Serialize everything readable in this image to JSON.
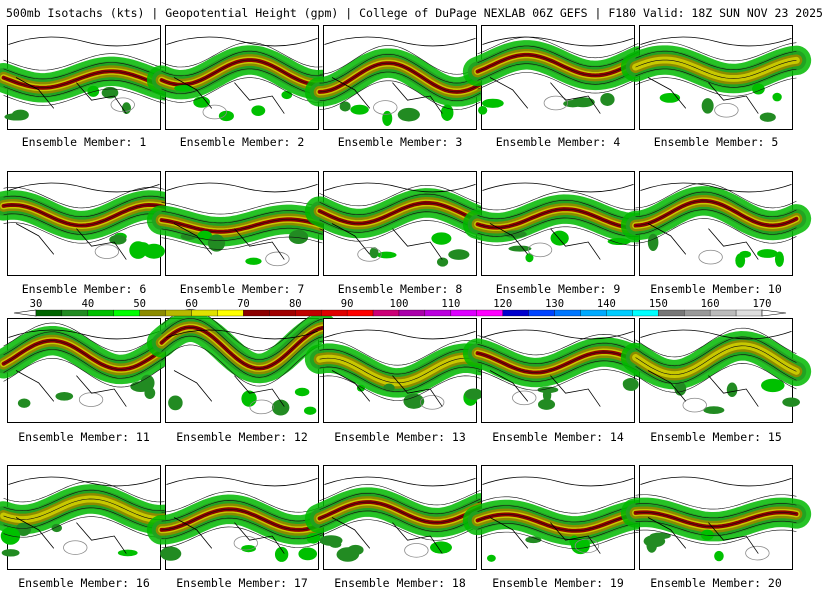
{
  "title": "500mb Isotachs (kts) | Geopotential Height (gpm) | College of DuPage NEXLAB  06Z GEFS | F180 Valid: 18Z SUN NOV 23 2025",
  "panel_label_prefix": "Ensemble Member: ",
  "members": [
    {
      "label": "Ensemble Member: 1",
      "jet_lat": 0.52,
      "amp": 0.08,
      "max_speed": 90
    },
    {
      "label": "Ensemble Member: 2",
      "jet_lat": 0.45,
      "amp": 0.12,
      "max_speed": 90
    },
    {
      "label": "Ensemble Member: 3",
      "jet_lat": 0.5,
      "amp": 0.14,
      "max_speed": 90
    },
    {
      "label": "Ensemble Member: 4",
      "jet_lat": 0.38,
      "amp": 0.1,
      "max_speed": 90
    },
    {
      "label": "Ensemble Member: 5",
      "jet_lat": 0.42,
      "amp": 0.09,
      "max_speed": 80
    },
    {
      "label": "Ensemble Member: 6",
      "jet_lat": 0.42,
      "amp": 0.1,
      "max_speed": 90
    },
    {
      "label": "Ensemble Member: 7",
      "jet_lat": 0.52,
      "amp": 0.06,
      "max_speed": 90
    },
    {
      "label": "Ensemble Member: 8",
      "jet_lat": 0.4,
      "amp": 0.1,
      "max_speed": 90
    },
    {
      "label": "Ensemble Member: 9",
      "jet_lat": 0.45,
      "amp": 0.09,
      "max_speed": 90
    },
    {
      "label": "Ensemble Member: 10",
      "jet_lat": 0.4,
      "amp": 0.12,
      "max_speed": 90
    },
    {
      "label": "Ensemble Member: 11",
      "jet_lat": 0.35,
      "amp": 0.14,
      "max_speed": 90
    },
    {
      "label": "Ensemble Member: 12",
      "jet_lat": 0.28,
      "amp": 0.2,
      "max_speed": 90
    },
    {
      "label": "Ensemble Member: 13",
      "jet_lat": 0.5,
      "amp": 0.12,
      "max_speed": 80
    },
    {
      "label": "Ensemble Member: 14",
      "jet_lat": 0.42,
      "amp": 0.1,
      "max_speed": 90
    },
    {
      "label": "Ensemble Member: 15",
      "jet_lat": 0.4,
      "amp": 0.14,
      "max_speed": 80
    },
    {
      "label": "Ensemble Member: 16",
      "jet_lat": 0.42,
      "amp": 0.1,
      "max_speed": 80
    },
    {
      "label": "Ensemble Member: 17",
      "jet_lat": 0.52,
      "amp": 0.1,
      "max_speed": 90
    },
    {
      "label": "Ensemble Member: 18",
      "jet_lat": 0.45,
      "amp": 0.1,
      "max_speed": 90
    },
    {
      "label": "Ensemble Member: 19",
      "jet_lat": 0.55,
      "amp": 0.08,
      "max_speed": 90
    },
    {
      "label": "Ensemble Member: 20",
      "jet_lat": 0.52,
      "amp": 0.07,
      "max_speed": 90
    }
  ],
  "colorbar": {
    "ticks": [
      "30",
      "40",
      "50",
      "60",
      "70",
      "80",
      "90",
      "100",
      "110",
      "120",
      "130",
      "140",
      "150",
      "160",
      "170"
    ],
    "colors": [
      "#006400",
      "#228b22",
      "#00c000",
      "#00ff00",
      "#8b8b00",
      "#b8b800",
      "#e0e000",
      "#ffff00",
      "#8b0000",
      "#a00000",
      "#c00000",
      "#e00000",
      "#ff0000",
      "#cc0077",
      "#aa00aa",
      "#bb00dd",
      "#dd00ff",
      "#ff00ff",
      "#0000cd",
      "#0044ff",
      "#0077ff",
      "#00aaff",
      "#00ccff",
      "#00ffff",
      "#777777",
      "#999999",
      "#bbbbbb",
      "#dddddd"
    ]
  }
}
